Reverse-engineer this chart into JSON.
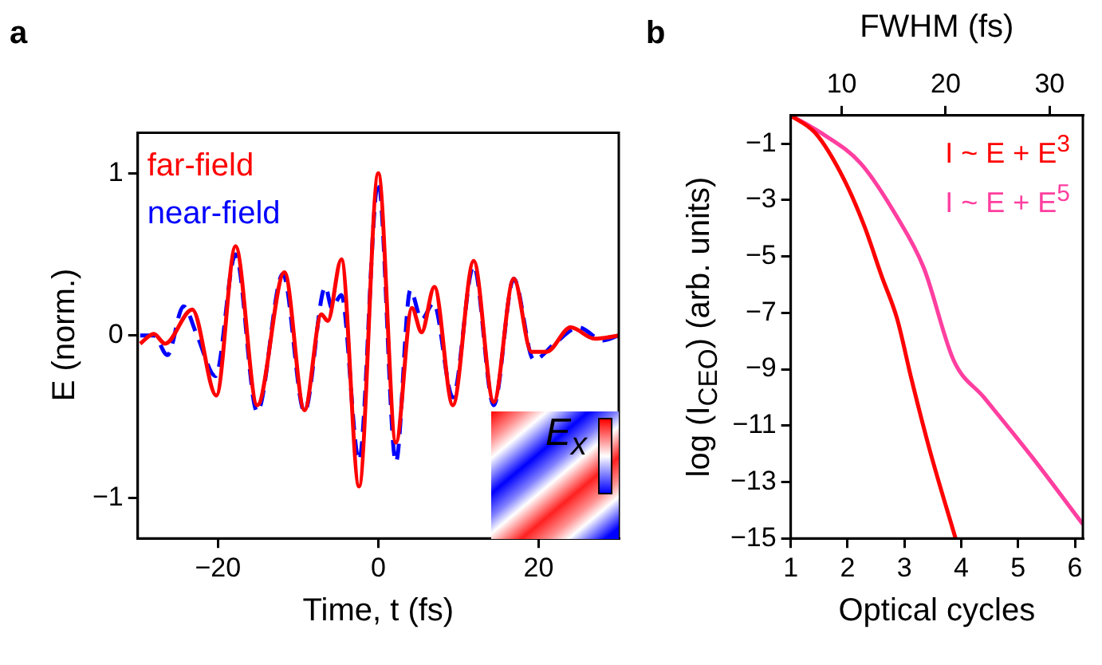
{
  "chart_data": [
    {
      "type": "line",
      "title": "a",
      "xlabel": "Time, t (fs)",
      "ylabel": "E (norm.)",
      "xlim": [
        -30,
        30
      ],
      "xticks": [
        -20,
        0,
        20
      ],
      "ylim": [
        -1.25,
        1.25
      ],
      "yticks": [
        -1,
        0,
        1
      ],
      "legend": "top left",
      "annotations": [
        "E$_{x}$"
      ],
      "series": [
        {
          "name": "far-field",
          "color": "#ff0000",
          "x": [
            -29.7,
            -28,
            -26.6,
            -23.2,
            -20.2,
            -17.8,
            -15.1,
            -11.7,
            -9.2,
            -7.1,
            -6.3,
            -4.6,
            -2.4,
            0,
            2.2,
            4.2,
            5.4,
            7,
            9.3,
            11.9,
            14.4,
            16.9,
            19.1,
            21,
            24,
            27,
            30
          ],
          "values": [
            -0.05,
            0.01,
            -0.05,
            0.16,
            -0.37,
            0.55,
            -0.43,
            0.39,
            -0.46,
            0.13,
            0.09,
            0.47,
            -0.93,
            1.0,
            -0.66,
            0.17,
            0.02,
            0.3,
            -0.43,
            0.46,
            -0.41,
            0.35,
            -0.1,
            -0.1,
            0.05,
            -0.02,
            0
          ]
        },
        {
          "name": "near-field",
          "color": "#0000ff",
          "line_style": "dashed",
          "x": [
            -29.7,
            -28,
            -26.3,
            -24.3,
            -22.6,
            -20.3,
            -17.8,
            -15.1,
            -11.9,
            -9.2,
            -6.6,
            -5.8,
            -4.6,
            -2.4,
            0,
            2.2,
            4,
            5.4,
            6.9,
            9.3,
            11.9,
            14.4,
            16.9,
            19.4,
            22,
            25,
            28,
            30
          ],
          "values": [
            0,
            0,
            -0.12,
            0.18,
            0,
            -0.25,
            0.5,
            -0.47,
            0.38,
            -0.47,
            0.3,
            0.17,
            0.25,
            -0.77,
            0.95,
            -0.78,
            0.28,
            0.1,
            0.2,
            -0.38,
            0.43,
            -0.43,
            0.35,
            -0.15,
            -0.05,
            0.05,
            -0.03,
            0
          ]
        }
      ]
    },
    {
      "type": "line",
      "title": "b",
      "xlabel": "Optical cycles",
      "x2label": "FWHM (fs)",
      "ylabel": "log (I$_{CEO}$) (arb. units)",
      "xlim": [
        1,
        6.14
      ],
      "xticks": [
        1,
        2,
        3,
        4,
        5,
        6
      ],
      "x2lim": [
        5.1,
        33.2
      ],
      "x2ticks": [
        10,
        20,
        30
      ],
      "ylim": [
        -15,
        0
      ],
      "yticks": [
        -1,
        -3,
        -5,
        -7,
        -9,
        -11,
        -13,
        -15
      ],
      "legend": "top right",
      "series": [
        {
          "name": "I ~ E + E$^{3}$",
          "color": "#ff0000",
          "x": [
            1,
            1.44,
            1.92,
            2.29,
            2.6,
            2.87,
            3.13,
            3.45,
            3.9
          ],
          "values": [
            0,
            -0.64,
            -2.2,
            -3.9,
            -5.7,
            -7.2,
            -9.4,
            -11.9,
            -15
          ]
        },
        {
          "name": "I ~ E + E$^{5}$",
          "color": "#ff3fa0",
          "x": [
            1,
            1.55,
            2.23,
            2.87,
            3.34,
            3.87,
            4.4,
            5.24,
            6.14
          ],
          "values": [
            0,
            -0.64,
            -1.7,
            -3.6,
            -5.4,
            -8.7,
            -10,
            -12.1,
            -14.5
          ]
        }
      ]
    }
  ]
}
